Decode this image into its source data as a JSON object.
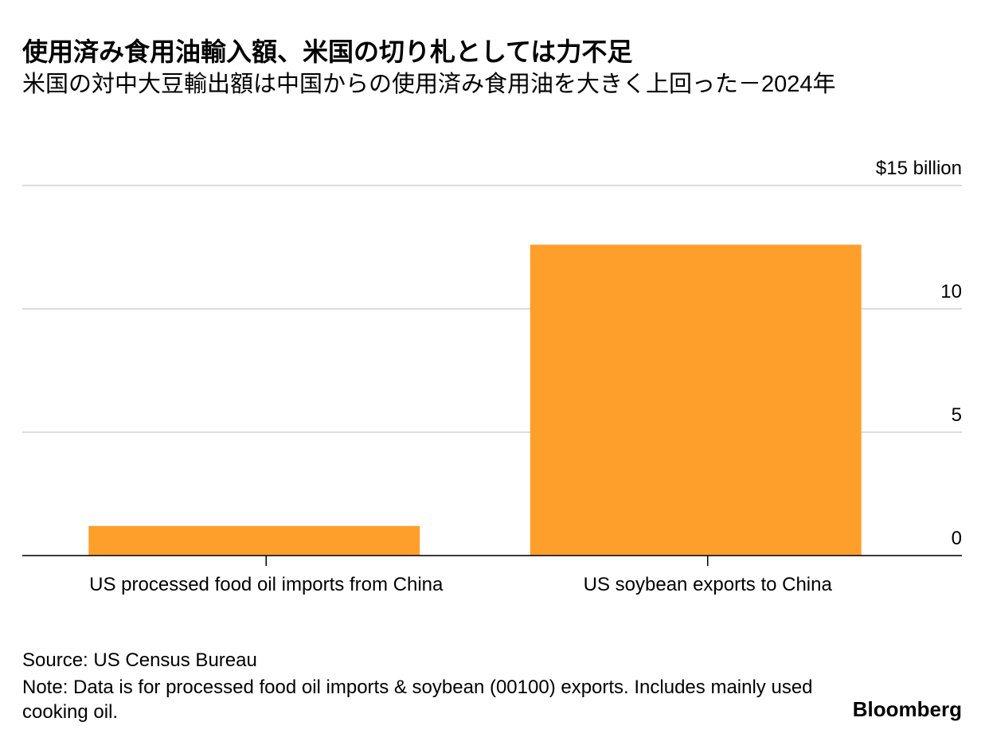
{
  "chart_data": {
    "type": "bar",
    "title": "使用済み食用油輸入額、米国の切り札としては力不足",
    "subtitle": "米国の対中大豆輸出額は中国からの使用済み食用油を大きく上回った－2024年",
    "categories": [
      "US processed food oil imports from China",
      "US soybean exports to China"
    ],
    "values": [
      1.2,
      12.6
    ],
    "color": "#fd9f2a",
    "ylim": [
      0,
      15
    ],
    "yticks": [
      0,
      5,
      10,
      {
        "value": 15,
        "label": "$15 billion"
      }
    ],
    "grid": true,
    "source": "Source: US Census Bureau",
    "note": "Note: Data is for processed food oil imports & soybean (00100) exports. Includes mainly used cooking oil.",
    "brand": "Bloomberg"
  }
}
